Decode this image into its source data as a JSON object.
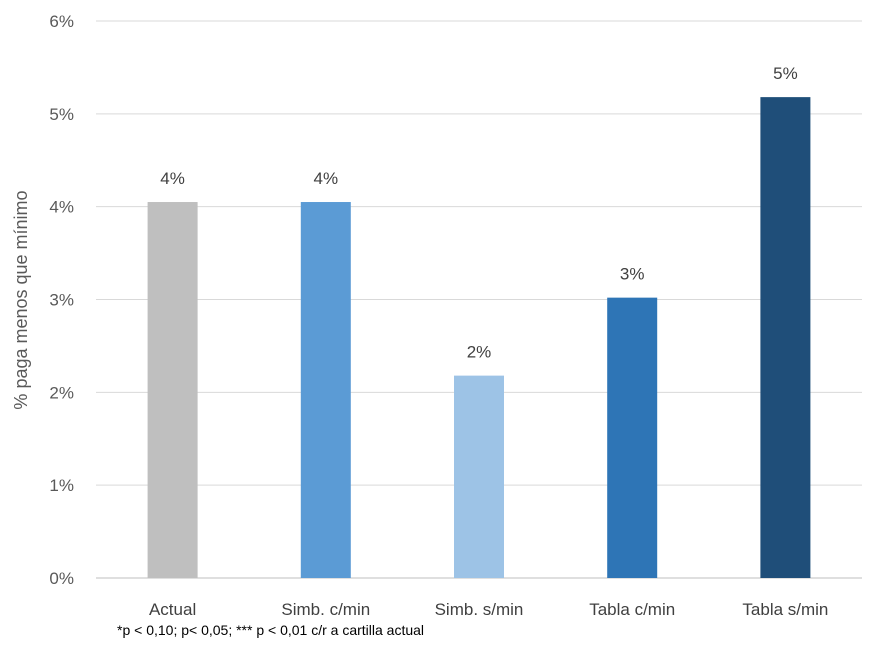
{
  "chart_data": {
    "type": "bar",
    "title": "",
    "xlabel": "",
    "ylabel": "% paga menos que mínimo",
    "categories": [
      "Actual",
      "Simb. c/min",
      "Simb. s/min",
      "Tabla c/min",
      "Tabla s/min"
    ],
    "values": [
      4.05,
      4.05,
      2.18,
      3.02,
      5.18
    ],
    "data_labels": [
      "4%",
      "4%",
      "2%",
      "3%",
      "5%"
    ],
    "bar_colors": [
      "#bfbfbf",
      "#5b9bd5",
      "#9dc3e6",
      "#2e75b6",
      "#1f4e79"
    ],
    "ylim": [
      0,
      6
    ],
    "yticks": [
      0,
      1,
      2,
      3,
      4,
      5,
      6
    ],
    "ytick_labels": [
      "0%",
      "1%",
      "2%",
      "3%",
      "4%",
      "5%",
      "6%"
    ],
    "grid": true,
    "legend": "none"
  },
  "footnote": "*p < 0,10; p< 0,05; *** p < 0,01 c/r a cartilla actual"
}
